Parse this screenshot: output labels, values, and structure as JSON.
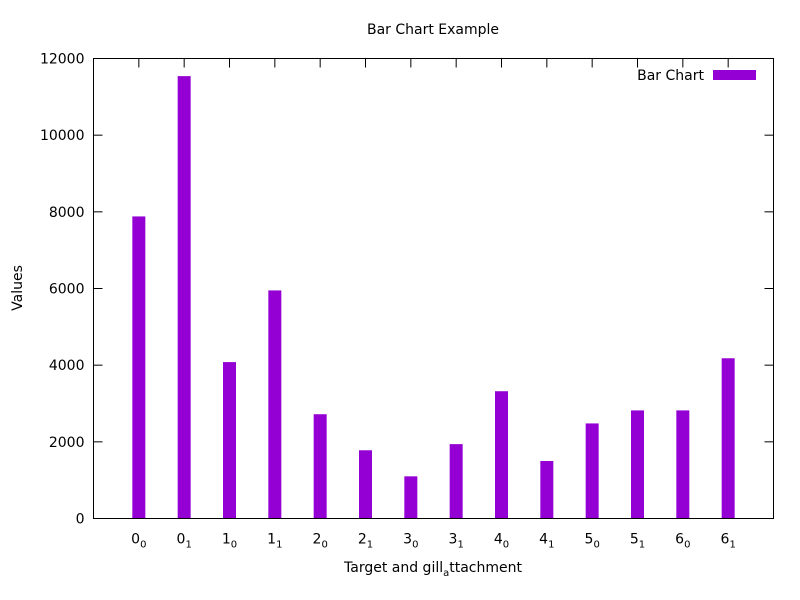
{
  "chart_data": {
    "type": "bar",
    "title": "Bar Chart Example",
    "xlabel": "Target and gill",
    "xlabel_sub": "a",
    "xlabel_after": "ttachment",
    "ylabel": "Values",
    "ylim": [
      0,
      12000
    ],
    "yticks": [
      0,
      2000,
      4000,
      6000,
      8000,
      10000,
      12000
    ],
    "categories": [
      {
        "base": "0",
        "sub": "0"
      },
      {
        "base": "0",
        "sub": "1"
      },
      {
        "base": "1",
        "sub": "0"
      },
      {
        "base": "1",
        "sub": "1"
      },
      {
        "base": "2",
        "sub": "0"
      },
      {
        "base": "2",
        "sub": "1"
      },
      {
        "base": "3",
        "sub": "0"
      },
      {
        "base": "3",
        "sub": "1"
      },
      {
        "base": "4",
        "sub": "0"
      },
      {
        "base": "4",
        "sub": "1"
      },
      {
        "base": "5",
        "sub": "0"
      },
      {
        "base": "5",
        "sub": "1"
      },
      {
        "base": "6",
        "sub": "0"
      },
      {
        "base": "6",
        "sub": "1"
      }
    ],
    "series": [
      {
        "name": "Bar Chart",
        "color": "#9400D3",
        "values": [
          7880,
          11540,
          4080,
          5950,
          2720,
          1780,
          1100,
          1940,
          3320,
          1500,
          2480,
          2820,
          2820,
          4180
        ]
      }
    ],
    "legend_position": "top-right",
    "grid": false
  }
}
